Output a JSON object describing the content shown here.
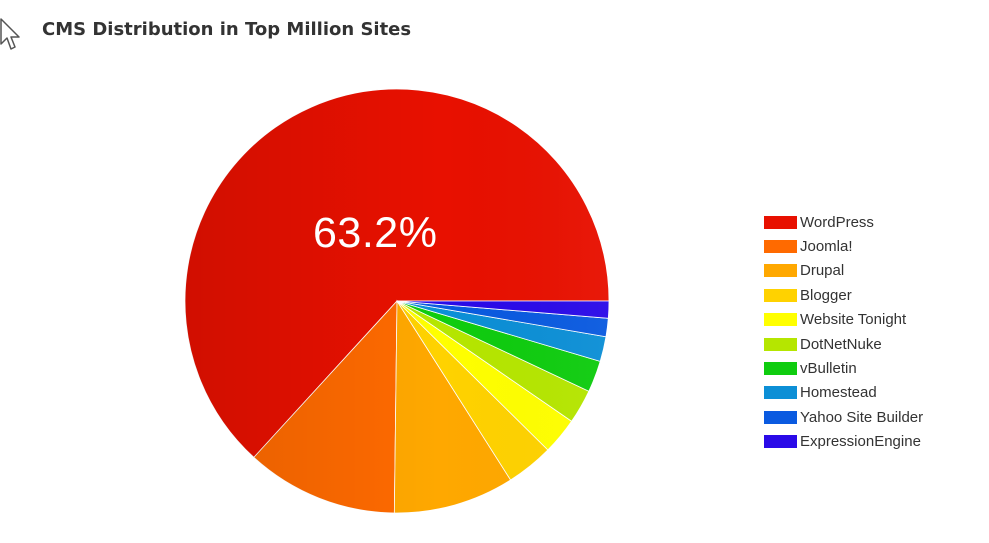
{
  "chart_data": {
    "type": "pie",
    "title": "CMS Distribution in Top Million Sites",
    "categories": [
      "WordPress",
      "Joomla!",
      "Drupal",
      "Blogger",
      "Website Tonight",
      "DotNetNuke",
      "vBulletin",
      "Homestead",
      "Yahoo Site Builder",
      "ExpressionEngine"
    ],
    "values": [
      63.2,
      11.6,
      9.2,
      3.6,
      2.8,
      2.6,
      2.4,
      1.9,
      1.4,
      1.3
    ],
    "colors": [
      "#e81000",
      "#ff6a00",
      "#ffa800",
      "#ffd200",
      "#ffff00",
      "#b5e600",
      "#0fcc0f",
      "#0c8fd6",
      "#0a5ae0",
      "#2a0ae8"
    ],
    "data_labels": [
      "63.2%"
    ],
    "legend_position": "right",
    "start_angle": "3 o'clock, clockwise direction reversed (counter-clockwise from right)"
  }
}
